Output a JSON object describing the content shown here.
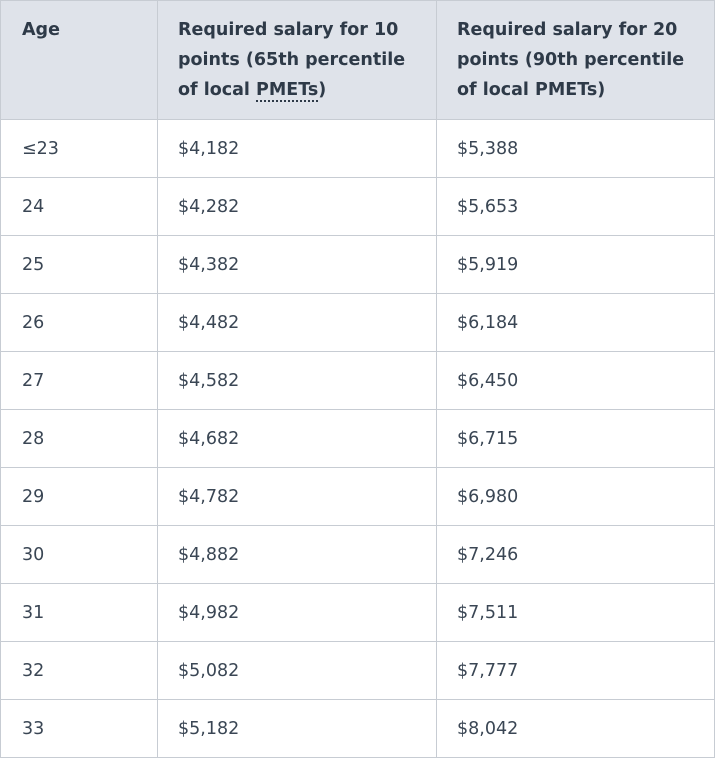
{
  "table": {
    "header": {
      "age": "Age",
      "salary10_before": "Required salary for 10 points (65th percentile of local ",
      "salary10_abbr": "PMETs",
      "salary10_after": ")",
      "salary20": "Required salary for 20 points (90th percentile of local PMETs)"
    },
    "rows": [
      {
        "age": "≤23",
        "salary10": "$4,182",
        "salary20": "$5,388"
      },
      {
        "age": "24",
        "salary10": "$4,282",
        "salary20": "$5,653"
      },
      {
        "age": "25",
        "salary10": "$4,382",
        "salary20": "$5,919"
      },
      {
        "age": "26",
        "salary10": "$4,482",
        "salary20": "$6,184"
      },
      {
        "age": "27",
        "salary10": "$4,582",
        "salary20": "$6,450"
      },
      {
        "age": "28",
        "salary10": "$4,682",
        "salary20": "$6,715"
      },
      {
        "age": "29",
        "salary10": "$4,782",
        "salary20": "$6,980"
      },
      {
        "age": "30",
        "salary10": "$4,882",
        "salary20": "$7,246"
      },
      {
        "age": "31",
        "salary10": "$4,982",
        "salary20": "$7,511"
      },
      {
        "age": "32",
        "salary10": "$5,082",
        "salary20": "$7,777"
      },
      {
        "age": "33",
        "salary10": "$5,182",
        "salary20": "$8,042"
      }
    ]
  },
  "colors": {
    "header_background": "#dfe3ea",
    "border": "#c7ccd3",
    "text": "#2e3a48"
  }
}
